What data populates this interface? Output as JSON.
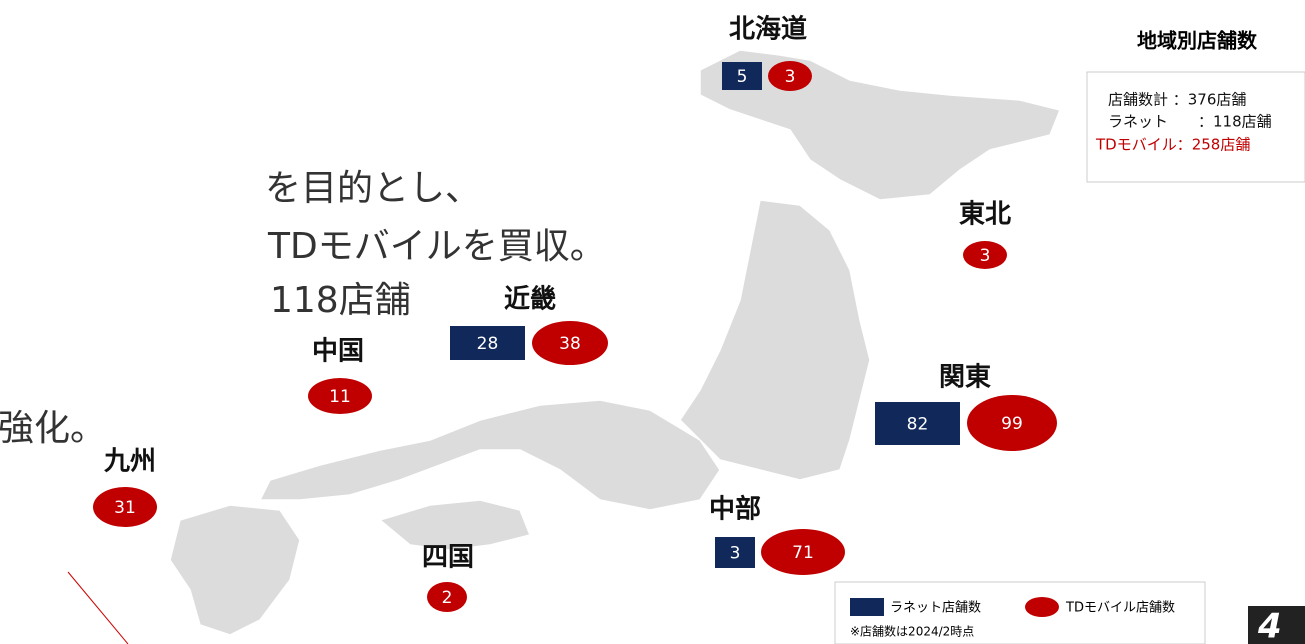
{
  "intro_lines": [
    "を目的とし、",
    "TDモバイルを買収。",
    "118店舗",
    "強化。"
  ],
  "regions": [
    {
      "name": "北海道",
      "ranet": "5",
      "td_mobile": "3"
    },
    {
      "name": "東北",
      "td_mobile": "3"
    },
    {
      "name": "近畿",
      "ranet": "28",
      "td_mobile": "38"
    },
    {
      "name": "中国",
      "td_mobile": "11"
    },
    {
      "name": "九州",
      "td_mobile": "31"
    },
    {
      "name": "四国",
      "td_mobile": "2"
    },
    {
      "name": "中部",
      "ranet": "3",
      "td_mobile": "71"
    },
    {
      "name": "関東",
      "ranet": "82",
      "td_mobile": "99"
    }
  ],
  "summary": {
    "title": "地域別店舗数",
    "lines": [
      "店舗数計 ：376店舗",
      "ラネット　　：118店舗",
      "TDモバイル：258店舗"
    ]
  },
  "legend": {
    "ranet": "ラネット店舗数",
    "td_mobile": "TDモバイル店舗数",
    "note": "※店舗数は2024/2時点"
  },
  "page_number": "4"
}
